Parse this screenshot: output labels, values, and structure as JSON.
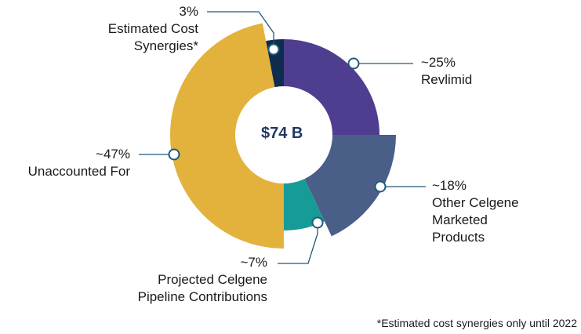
{
  "chart_data": {
    "type": "pie",
    "center_label": "$74 B",
    "footnote": "*Estimated cost synergies only until 2022",
    "slices": [
      {
        "key": "revlimid",
        "value": 25,
        "value_label": "~25%",
        "label_lines": [
          "Revlimid"
        ],
        "color": "#4f3d8f"
      },
      {
        "key": "other_marketed",
        "value": 18,
        "value_label": "~18%",
        "label_lines": [
          "Other Celgene",
          "Marketed",
          "Products"
        ],
        "color": "#4a5f88"
      },
      {
        "key": "pipeline",
        "value": 7,
        "value_label": "~7%",
        "label_lines": [
          "Projected Celgene",
          "Pipeline Contributions"
        ],
        "color": "#169b97"
      },
      {
        "key": "unaccounted",
        "value": 47,
        "value_label": "~47%",
        "label_lines": [
          "Unaccounted For"
        ],
        "color": "#e3b23c"
      },
      {
        "key": "synergies",
        "value": 3,
        "value_label": "3%",
        "label_lines": [
          "Estimated Cost",
          "Synergies*"
        ],
        "color": "#0f2d4f"
      }
    ],
    "leader_color": "#1f5a7a"
  }
}
